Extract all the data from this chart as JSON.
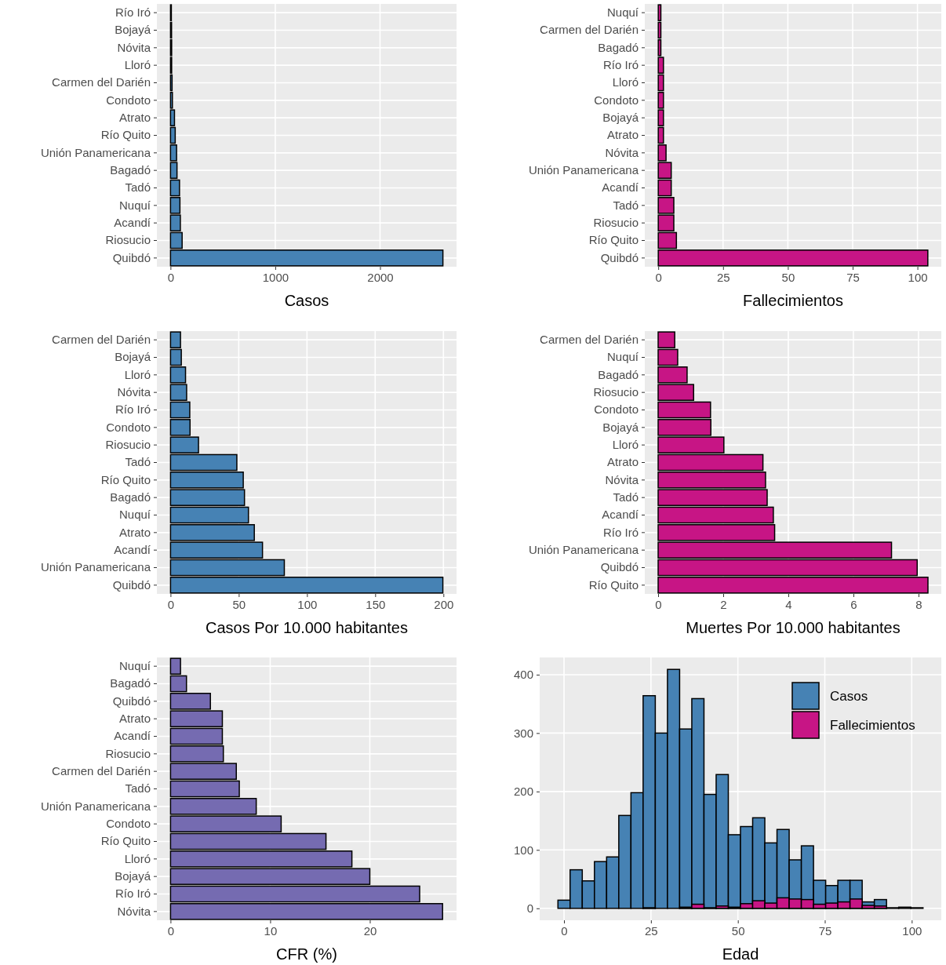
{
  "chart_data": [
    {
      "type": "bar",
      "orientation": "horizontal",
      "xlabel": "Casos",
      "color": "#4682b4",
      "grid": true,
      "categories": [
        "Río Iró",
        "Bojayá",
        "Nóvita",
        "Lloró",
        "Carmen del Darién",
        "Condoto",
        "Atrato",
        "Río Quito",
        "Unión Panamericana",
        "Bagadó",
        "Tadó",
        "Nuquí",
        "Acandí",
        "Riosucio",
        "Quibdó"
      ],
      "values": [
        8,
        10,
        11,
        11,
        15,
        18,
        38,
        45,
        58,
        62,
        86,
        90,
        94,
        111,
        2600
      ],
      "xlim": [
        -130,
        2730
      ],
      "xticks": [
        0,
        1000,
        2000
      ]
    },
    {
      "type": "bar",
      "orientation": "horizontal",
      "xlabel": "Fallecimientos",
      "color": "#c71585",
      "grid": true,
      "categories": [
        "Nuquí",
        "Carmen del Darién",
        "Bagadó",
        "Río Iró",
        "Lloró",
        "Condoto",
        "Bojayá",
        "Atrato",
        "Nóvita",
        "Unión Panamericana",
        "Acandí",
        "Tadó",
        "Riosucio",
        "Río Quito",
        "Quibdó"
      ],
      "values": [
        1,
        1,
        1,
        2,
        2,
        2,
        2,
        2,
        3,
        5,
        5,
        6,
        6,
        7,
        104
      ],
      "xlim": [
        -5.2,
        109.2
      ],
      "xticks": [
        0,
        25,
        50,
        75,
        100
      ]
    },
    {
      "type": "bar",
      "orientation": "horizontal",
      "xlabel": "Casos Por 10.000 habitantes",
      "color": "#4682b4",
      "grid": true,
      "categories": [
        "Carmen del Darién",
        "Bojayá",
        "Lloró",
        "Nóvita",
        "Río Iró",
        "Condoto",
        "Riosucio",
        "Tadó",
        "Río Quito",
        "Bagadó",
        "Nuquí",
        "Atrato",
        "Acandí",
        "Unión Panamericana",
        "Quibdó"
      ],
      "values": [
        7.3,
        7.9,
        11,
        11.8,
        14.1,
        14.3,
        20.5,
        48.6,
        53.3,
        54.2,
        57.1,
        61.4,
        67.4,
        83.4,
        199.6
      ],
      "xlim": [
        -10,
        209.6
      ],
      "xticks": [
        0,
        50,
        100,
        150,
        200
      ]
    },
    {
      "type": "bar",
      "orientation": "horizontal",
      "xlabel": "Muertes Por 10.000 habitantes",
      "color": "#c71585",
      "grid": true,
      "categories": [
        "Carmen del Darién",
        "Nuquí",
        "Bagadó",
        "Riosucio",
        "Condoto",
        "Bojayá",
        "Lloró",
        "Atrato",
        "Nóvita",
        "Tadó",
        "Acandí",
        "Río Iró",
        "Unión Panamericana",
        "Quibdó",
        "Río Quito"
      ],
      "values": [
        0.51,
        0.6,
        0.89,
        1.09,
        1.61,
        1.62,
        2.02,
        3.22,
        3.3,
        3.35,
        3.54,
        3.58,
        7.17,
        7.96,
        8.29
      ],
      "xlim": [
        -0.41,
        8.7
      ],
      "xticks": [
        0,
        2,
        4,
        6,
        8
      ]
    },
    {
      "type": "bar",
      "orientation": "horizontal",
      "xlabel": "CFR (%)",
      "color": "#756bb1",
      "grid": true,
      "categories": [
        "Nuquí",
        "Bagadó",
        "Quibdó",
        "Atrato",
        "Acandí",
        "Riosucio",
        "Carmen del Darién",
        "Tadó",
        "Unión Panamericana",
        "Condoto",
        "Río Quito",
        "Lloró",
        "Bojayá",
        "Río Iró",
        "Nóvita"
      ],
      "values": [
        1.0,
        1.6,
        4.0,
        5.2,
        5.2,
        5.3,
        6.6,
        6.9,
        8.6,
        11.1,
        15.6,
        18.2,
        20,
        25,
        27.3
      ],
      "xlim": [
        -1.37,
        28.7
      ],
      "xticks": [
        0,
        10,
        20
      ]
    },
    {
      "type": "histogram",
      "xlabel": "Edad",
      "grid": true,
      "legend": "top right",
      "bins": [
        -1.75,
        1.75,
        5.25,
        8.75,
        12.25,
        15.75,
        19.25,
        22.75,
        26.25,
        29.75,
        33.25,
        36.75,
        40.25,
        43.75,
        47.25,
        50.75,
        54.25,
        57.75,
        61.25,
        64.75,
        68.25,
        71.75,
        75.25,
        78.75,
        82.25,
        85.75,
        89.25,
        92.75,
        96.25,
        99.75,
        103.25
      ],
      "series": [
        {
          "name": "Casos",
          "color": "#4682b4",
          "values": [
            14,
            66,
            47,
            80,
            88,
            159,
            198,
            364,
            300,
            409,
            307,
            359,
            195,
            229,
            126,
            140,
            155,
            112,
            135,
            83,
            107,
            48,
            39,
            48,
            48,
            11,
            15,
            1,
            2,
            1
          ]
        },
        {
          "name": "Fallecimientos",
          "color": "#c71585",
          "values": [
            0,
            0,
            0,
            0,
            0,
            0,
            0,
            1,
            0,
            0,
            2,
            7,
            1,
            4,
            2,
            8,
            13,
            9,
            18,
            16,
            15,
            7,
            9,
            11,
            16,
            5,
            4,
            0,
            0,
            0
          ]
        }
      ],
      "xlim": [
        -7,
        108.5
      ],
      "xticks": [
        0,
        25,
        50,
        75,
        100
      ],
      "ylim": [
        -20.45,
        429.45
      ],
      "yticks": [
        0,
        100,
        200,
        300,
        400
      ]
    }
  ]
}
